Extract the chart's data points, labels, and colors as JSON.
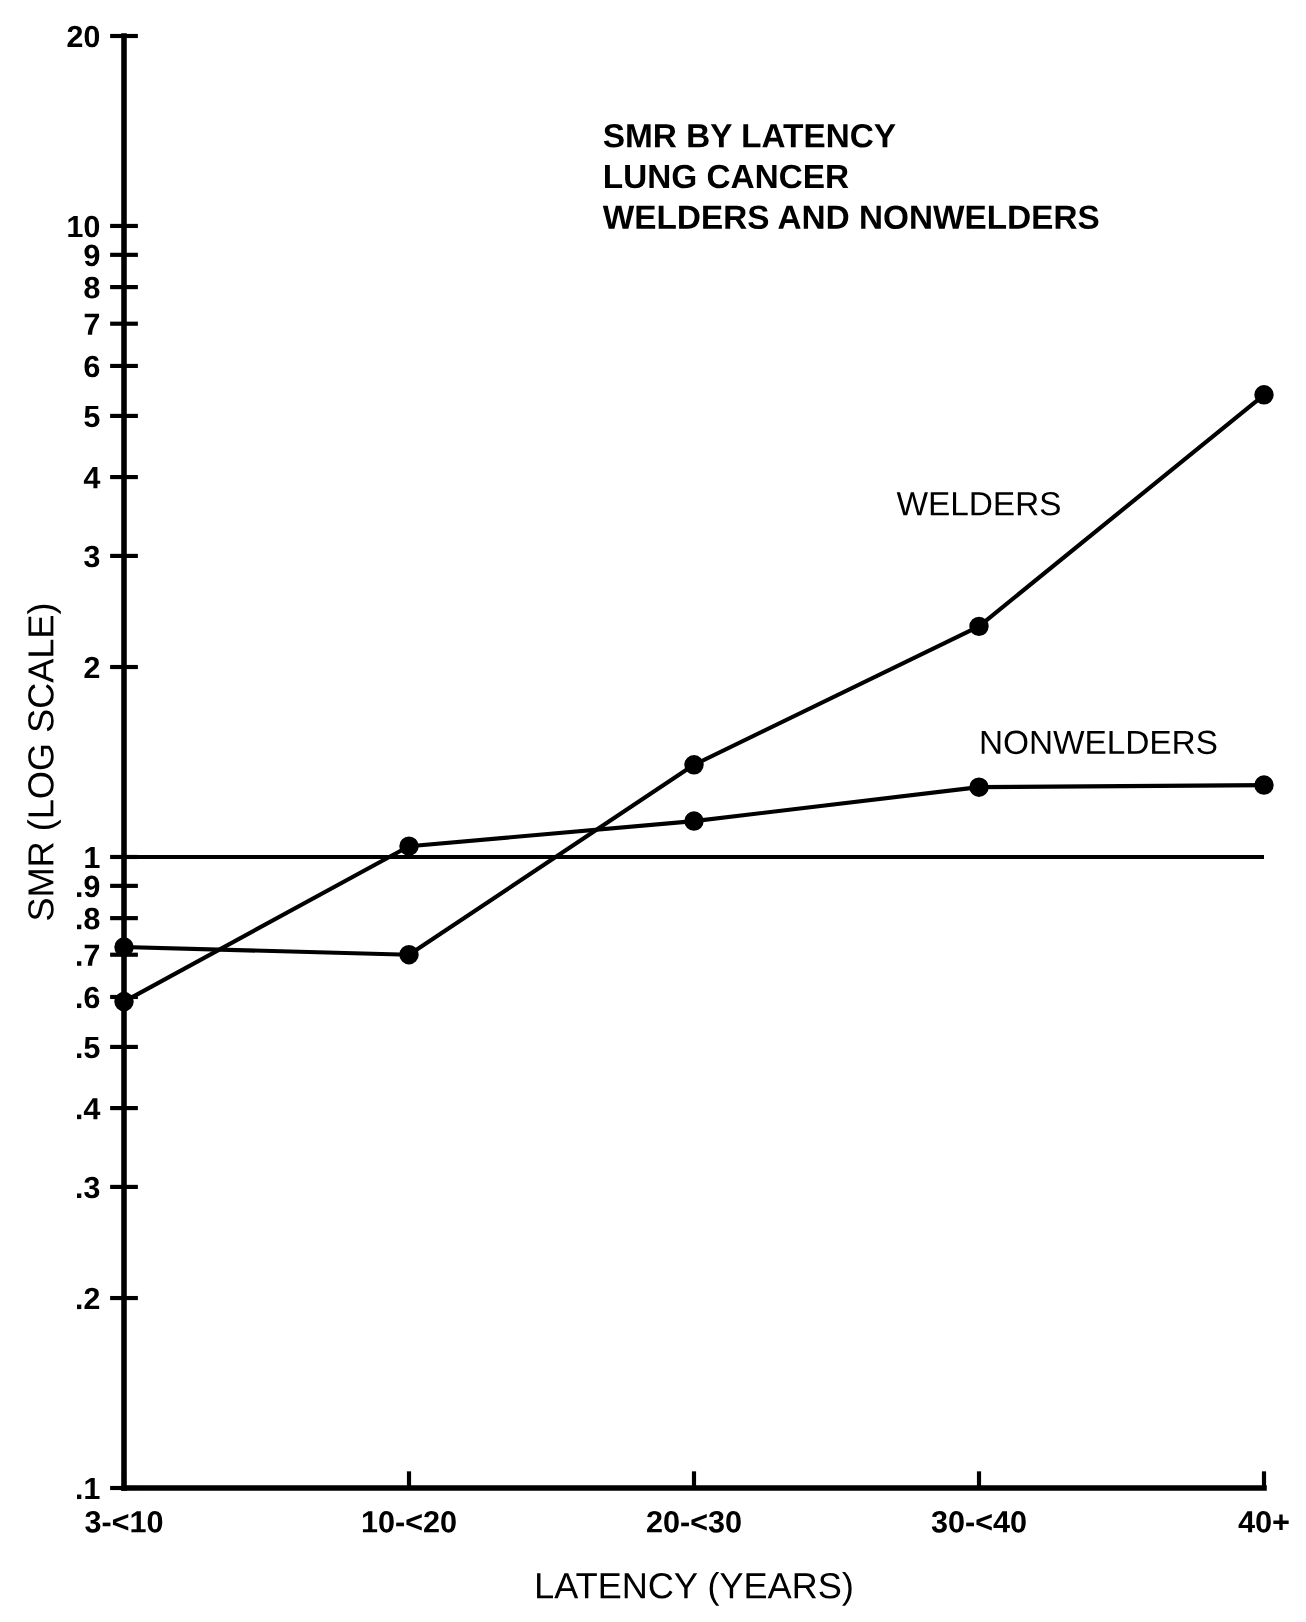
{
  "chart_data": {
    "type": "line",
    "title": "SMR BY LATENCY\nLUNG CANCER\nWELDERS AND NONWELDERS",
    "xlabel": "LATENCY (YEARS)",
    "ylabel": "SMR (LOG SCALE)",
    "categories": [
      "3-<10",
      "10-<20",
      "20-<30",
      "30-<40",
      "40+"
    ],
    "series": [
      {
        "name": "WELDERS",
        "color": "#000000",
        "values": [
          0.72,
          0.7,
          1.4,
          2.32,
          5.4
        ]
      },
      {
        "name": "NONWELDERS",
        "color": "#000000",
        "values": [
          0.59,
          1.04,
          1.14,
          1.29,
          1.3
        ]
      }
    ],
    "log": "y",
    "ylim": [
      0.1,
      20
    ],
    "yticks": [
      {
        "value": 0.1,
        "label": ".1"
      },
      {
        "value": 0.2,
        "label": ".2"
      },
      {
        "value": 0.3,
        "label": ".3"
      },
      {
        "value": 0.4,
        "label": ".4"
      },
      {
        "value": 0.5,
        "label": ".5"
      },
      {
        "value": 0.6,
        "label": ".6"
      },
      {
        "value": 0.7,
        "label": ".7"
      },
      {
        "value": 0.8,
        "label": ".8"
      },
      {
        "value": 0.9,
        "label": ".9"
      },
      1,
      2,
      3,
      4,
      5,
      6,
      7,
      8,
      9,
      10,
      20
    ],
    "ref_lines": [
      {
        "axis": "y",
        "value": 1,
        "color": "#000000"
      }
    ],
    "marker": "circle",
    "line_style": "solid",
    "grid": false,
    "legend": false
  }
}
